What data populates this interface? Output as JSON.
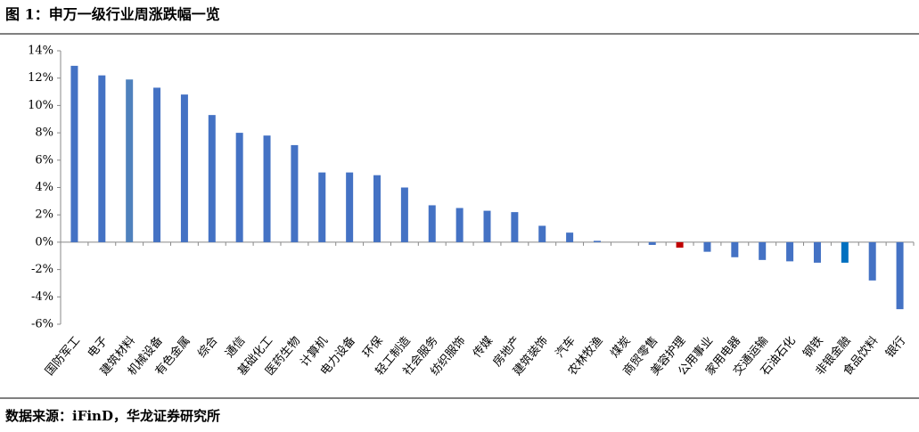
{
  "chart_data": {
    "type": "bar",
    "title": "图 1：申万一级行业周涨跌幅一览",
    "source": "数据来源：iFinD，华龙证券研究所",
    "categories": [
      "国防军工",
      "电子",
      "建筑材料",
      "机械设备",
      "有色金属",
      "综合",
      "通信",
      "基础化工",
      "医药生物",
      "计算机",
      "电力设备",
      "环保",
      "轻工制造",
      "社会服务",
      "纺织服饰",
      "传媒",
      "房地产",
      "建筑装饰",
      "汽车",
      "农林牧渔",
      "煤炭",
      "商贸零售",
      "美容护理",
      "公用事业",
      "家用电器",
      "交通运输",
      "石油石化",
      "钢铁",
      "非银金融",
      "食品饮料",
      "银行"
    ],
    "values": [
      12.9,
      12.2,
      11.9,
      11.3,
      10.8,
      9.3,
      8.0,
      7.8,
      7.1,
      5.1,
      5.1,
      4.9,
      4.0,
      2.7,
      2.5,
      2.3,
      2.2,
      1.2,
      0.7,
      0.1,
      0.0,
      -0.2,
      -0.4,
      -0.7,
      -1.1,
      -1.3,
      -1.4,
      -1.5,
      -1.5,
      -2.8,
      -4.9
    ],
    "colors": [
      "#4472c4",
      "#4472c4",
      "#4f81bd",
      "#4472c4",
      "#4472c4",
      "#4472c4",
      "#4472c4",
      "#4472c4",
      "#4472c4",
      "#4472c4",
      "#4472c4",
      "#4472c4",
      "#4472c4",
      "#4472c4",
      "#4472c4",
      "#4472c4",
      "#4472c4",
      "#4472c4",
      "#4472c4",
      "#4472c4",
      "#4472c4",
      "#4472c4",
      "#c00000",
      "#4472c4",
      "#4472c4",
      "#4472c4",
      "#4472c4",
      "#4472c4",
      "#0070c0",
      "#4472c4",
      "#4472c4"
    ],
    "ylim": [
      -6,
      14
    ],
    "yticks": [
      {
        "value": -6,
        "label": "-6%"
      },
      {
        "value": -4,
        "label": "-4%"
      },
      {
        "value": -2,
        "label": "-2%"
      },
      {
        "value": 0,
        "label": "0%"
      },
      {
        "value": 2,
        "label": "2%"
      },
      {
        "value": 4,
        "label": "4%"
      },
      {
        "value": 6,
        "label": "6%"
      },
      {
        "value": 8,
        "label": "8%"
      },
      {
        "value": 10,
        "label": "10%"
      },
      {
        "value": 12,
        "label": "12%"
      },
      {
        "value": 14,
        "label": "14%"
      }
    ],
    "grid": false
  }
}
